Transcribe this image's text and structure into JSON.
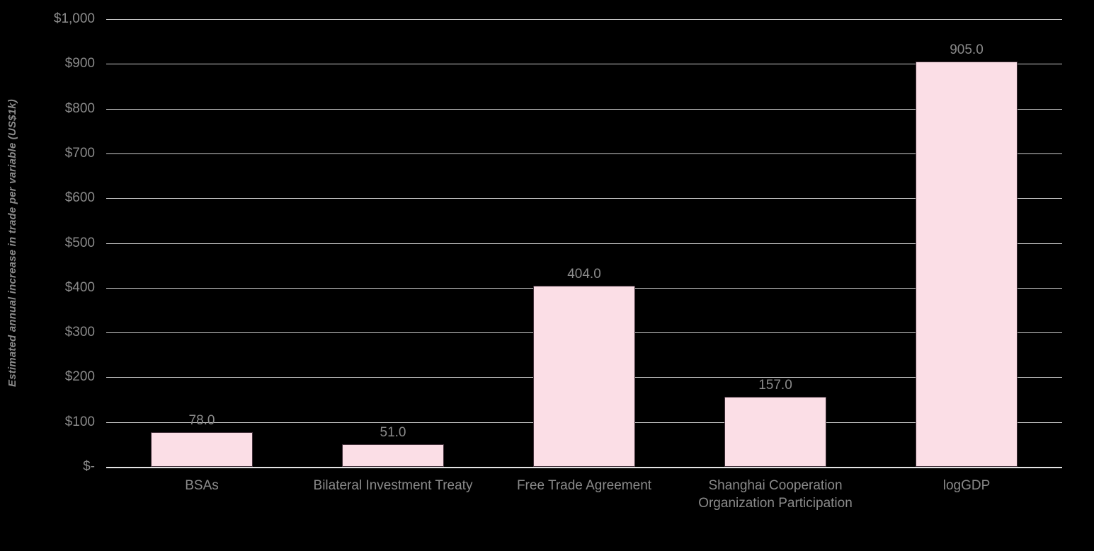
{
  "chart_data": {
    "type": "bar",
    "title": "",
    "xlabel": "",
    "ylabel": "Estimated annual increase in trade per variable (US$1k)",
    "categories": [
      "BSAs",
      "Bilateral Investment Treaty",
      "Free Trade Agreement",
      "Shanghai Cooperation Organization Participation",
      "logGDP"
    ],
    "values": [
      78.0,
      51.0,
      404.0,
      157.0,
      905.0
    ],
    "data_labels": [
      "78.0",
      "51.0",
      "404.0",
      "157.0",
      "905.0"
    ],
    "ylim": [
      0,
      1000
    ],
    "ytick_interval": 100,
    "yticks": [
      {
        "value": 0,
        "label": "$-"
      },
      {
        "value": 100,
        "label": "$100"
      },
      {
        "value": 200,
        "label": "$200"
      },
      {
        "value": 300,
        "label": "$300"
      },
      {
        "value": 400,
        "label": "$400"
      },
      {
        "value": 500,
        "label": "$500"
      },
      {
        "value": 600,
        "label": "$600"
      },
      {
        "value": 700,
        "label": "$700"
      },
      {
        "value": 800,
        "label": "$800"
      },
      {
        "value": 900,
        "label": "$900"
      },
      {
        "value": 1000,
        "label": "$1,000"
      }
    ],
    "grid": "horizontal",
    "legend": "none",
    "colors": {
      "background": "#000000",
      "bar_fill": "#fbdee6",
      "bar_border": "#41303a",
      "gridline": "#cfcfcf",
      "axis_line": "#e3e3e3",
      "text": "#8a8a8a"
    }
  }
}
